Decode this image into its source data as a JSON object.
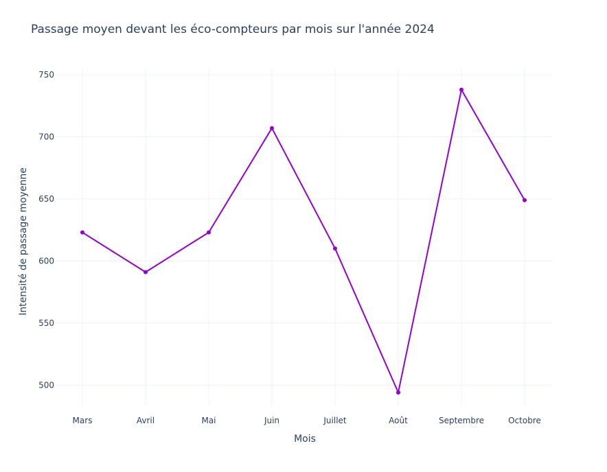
{
  "chart_data": {
    "type": "line",
    "title": "Passage moyen devant les éco-compteurs par mois sur l'année 2024",
    "xlabel": "Mois",
    "ylabel": "Intensité de passage moyenne",
    "categories": [
      "Mars",
      "Avril",
      "Mai",
      "Juin",
      "Juillet",
      "Août",
      "Septembre",
      "Octobre"
    ],
    "series": [
      {
        "values": [
          623,
          591,
          623,
          707,
          610,
          494,
          738,
          649
        ]
      }
    ],
    "yticks": [
      500,
      550,
      600,
      650,
      700,
      750
    ],
    "ylim": [
      483,
      755
    ],
    "grid": true,
    "line_color": "#9400D3",
    "grid_color": "#ebf0f8",
    "text_color": "#2a3f5f"
  }
}
